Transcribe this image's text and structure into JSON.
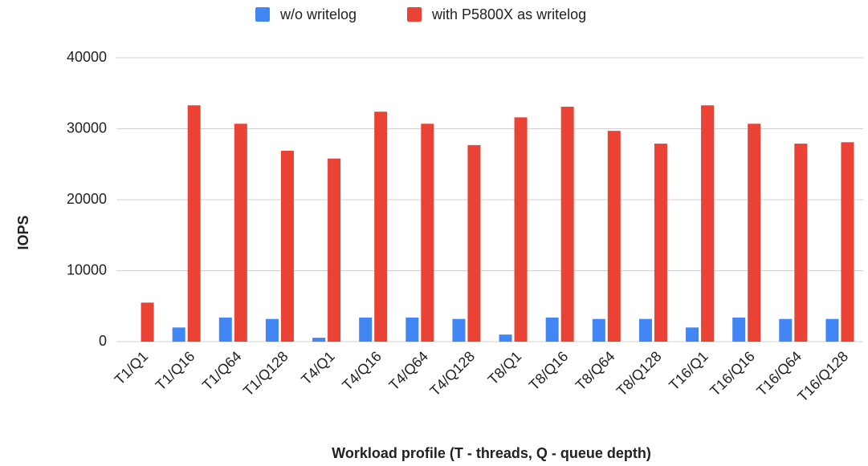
{
  "chart_data": {
    "type": "bar",
    "x_label": "Workload profile (T - threads, Q - queue depth)",
    "y_label": "IOPS",
    "categories": [
      "T1/Q1",
      "T1/Q16",
      "T1/Q64",
      "T1/Q128",
      "T4/Q1",
      "T4/Q16",
      "T4/Q64",
      "T4/Q128",
      "T8/Q1",
      "T8/Q16",
      "T8/Q64",
      "T8/Q128",
      "T16/Q1",
      "T16/Q16",
      "T16/Q64",
      "T16/Q128"
    ],
    "series": [
      {
        "name": "w/o writelog",
        "color": "#4285f4",
        "values": [
          0,
          2000,
          3400,
          3200,
          550,
          3400,
          3400,
          3200,
          1000,
          3400,
          3200,
          3200,
          2000,
          3400,
          3200,
          3200
        ]
      },
      {
        "name": "with P5800X as writelog",
        "color": "#ea4335",
        "values": [
          5500,
          33300,
          30700,
          26900,
          25800,
          32400,
          30700,
          27700,
          31600,
          33100,
          29700,
          27900,
          33300,
          30700,
          27900,
          28100
        ]
      }
    ],
    "ylim": [
      0,
      40000
    ],
    "yticks": [
      0,
      10000,
      20000,
      30000,
      40000
    ],
    "grid": true,
    "legend": "top"
  }
}
